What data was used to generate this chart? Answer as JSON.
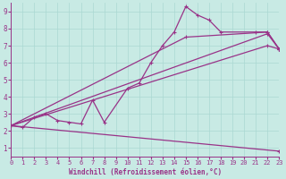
{
  "xlabel": "Windchill (Refroidissement éolien,°C)",
  "bg_color": "#c8eae4",
  "line_color": "#993388",
  "grid_color": "#aad8d2",
  "xlim": [
    0,
    23
  ],
  "ylim": [
    0.5,
    9.5
  ],
  "xticks": [
    0,
    1,
    2,
    3,
    4,
    5,
    6,
    7,
    8,
    9,
    10,
    11,
    12,
    13,
    14,
    15,
    16,
    17,
    18,
    19,
    20,
    21,
    22,
    23
  ],
  "yticks": [
    1,
    2,
    3,
    4,
    5,
    6,
    7,
    8,
    9
  ],
  "series": [
    {
      "x": [
        0,
        1,
        2,
        3,
        4,
        5,
        6,
        7,
        8,
        10,
        11,
        12,
        13,
        14,
        15,
        16,
        17,
        18,
        21,
        22,
        23
      ],
      "y": [
        2.3,
        2.2,
        2.8,
        3.0,
        2.6,
        2.5,
        2.4,
        3.8,
        2.5,
        4.5,
        4.8,
        6.0,
        7.0,
        7.8,
        9.3,
        8.8,
        8.5,
        7.8,
        7.8,
        7.8,
        6.8
      ]
    },
    {
      "x": [
        0,
        23
      ],
      "y": [
        2.3,
        0.8
      ]
    },
    {
      "x": [
        0,
        22,
        23
      ],
      "y": [
        2.3,
        7.7,
        6.8
      ]
    },
    {
      "x": [
        0,
        22,
        23
      ],
      "y": [
        2.3,
        7.0,
        6.8
      ]
    },
    {
      "x": [
        0,
        15,
        22,
        23
      ],
      "y": [
        2.3,
        7.5,
        7.8,
        6.8
      ]
    }
  ]
}
